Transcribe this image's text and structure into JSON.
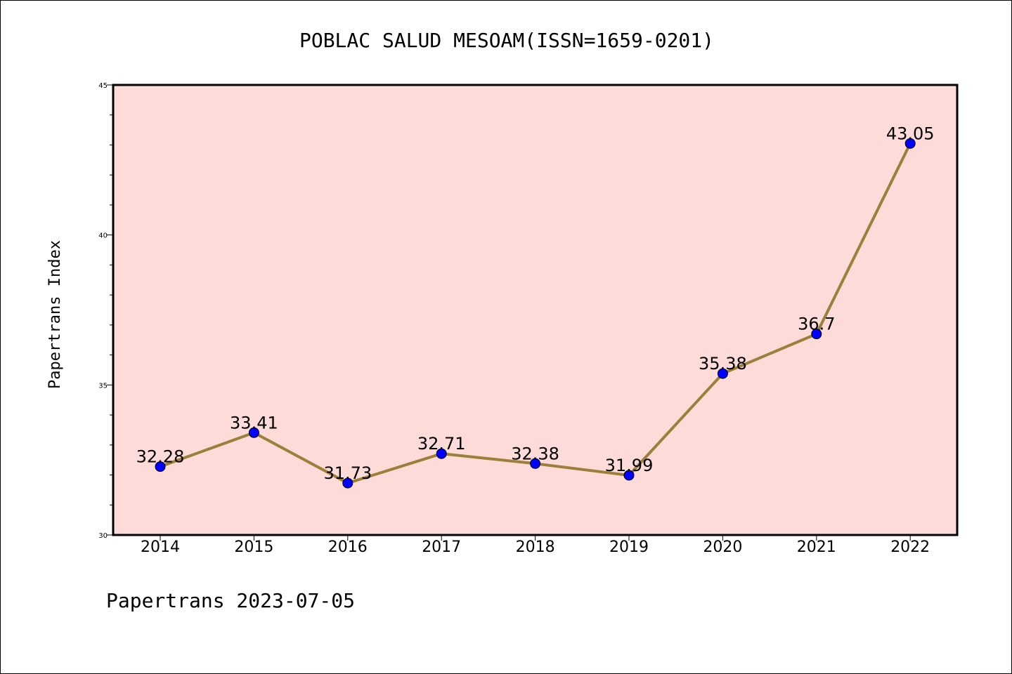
{
  "chart_data": {
    "type": "line",
    "title": "POBLAC SALUD MESOAM(ISSN=1659-0201)",
    "xlabel": "",
    "ylabel": "Papertrans Index",
    "categories": [
      "2014",
      "2015",
      "2016",
      "2017",
      "2018",
      "2019",
      "2020",
      "2021",
      "2022"
    ],
    "series": [
      {
        "values": [
          32.28,
          33.41,
          31.73,
          32.71,
          32.38,
          31.99,
          35.38,
          36.7,
          43.05
        ],
        "data_labels": [
          "32.28",
          "33.41",
          "31.73",
          "32.71",
          "32.38",
          "31.99",
          "35.38",
          "36.7",
          "43.05"
        ]
      }
    ],
    "ylim": [
      30,
      45
    ],
    "yticks": [
      "30",
      "35",
      "40",
      "45"
    ],
    "grid": false,
    "legend": "none",
    "colors": {
      "plot_background": "#fddbd8",
      "line": "#9b7f3a",
      "marker": "#0000ff"
    }
  },
  "footer": "Papertrans 2023-07-05"
}
